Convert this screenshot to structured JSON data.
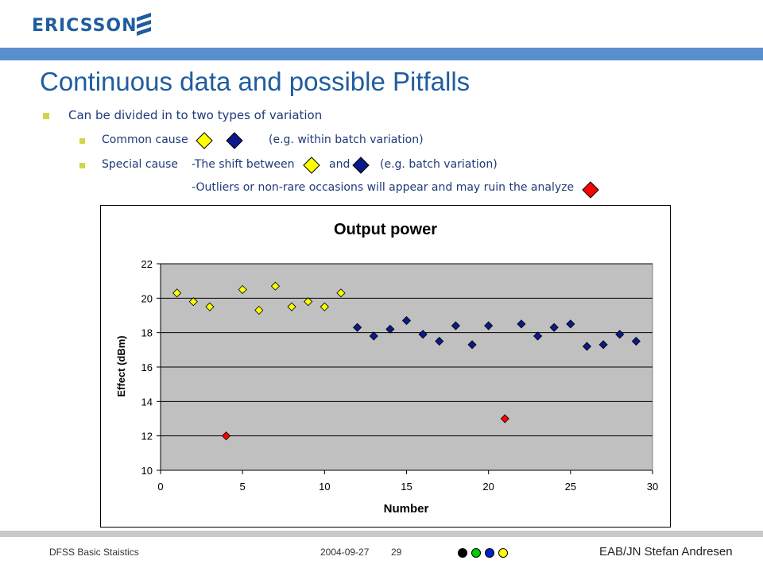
{
  "header": {
    "logo_text": "ERICSSON",
    "logo_icon": "ericsson-stripes-icon",
    "bar_color": "#5a8fcf"
  },
  "slide": {
    "title": "Continuous data and possible Pitfalls",
    "bullet": "Can be divided in to two types of variation",
    "common": {
      "label": "Common cause",
      "note": "(e.g. within batch variation)"
    },
    "special": {
      "label": "Special cause",
      "shift_text": "-The shift between",
      "and_text": "and",
      "note": "(e.g. batch variation)",
      "outlier_text": "-Outliers or non-rare occasions will appear and may ruin the analyze"
    },
    "marker_colors": {
      "yellow": "#ffff00",
      "navy": "#0a1a8a",
      "red": "#ff0000"
    }
  },
  "chart_data": {
    "type": "scatter",
    "title": "Output power",
    "xlabel": "Number",
    "ylabel": "Effect (dBm)",
    "xlim": [
      0,
      30
    ],
    "ylim": [
      10,
      22
    ],
    "x_ticks": [
      0,
      5,
      10,
      15,
      20,
      25,
      30
    ],
    "y_ticks": [
      10,
      12,
      14,
      16,
      18,
      20,
      22
    ],
    "grid": "horizontal",
    "plot_background": "#c0c0c0",
    "series": [
      {
        "color": "#ffff00",
        "x": [
          1,
          2,
          3,
          5,
          6,
          7,
          8,
          9,
          10,
          11
        ],
        "y": [
          20.3,
          19.8,
          19.5,
          20.5,
          19.3,
          20.7,
          19.5,
          19.8,
          19.5,
          20.3
        ]
      },
      {
        "color": "#0a1a8a",
        "x": [
          12,
          13,
          14,
          15,
          16,
          17,
          18,
          19,
          20,
          22,
          23,
          24,
          25,
          26,
          27,
          28,
          29
        ],
        "y": [
          18.3,
          17.8,
          18.2,
          18.7,
          17.9,
          17.5,
          18.4,
          17.3,
          18.4,
          18.5,
          17.8,
          18.3,
          18.5,
          17.2,
          17.3,
          17.9,
          17.5
        ]
      },
      {
        "color": "#ff0000",
        "x": [
          4,
          21
        ],
        "y": [
          12.0,
          13.0
        ]
      }
    ]
  },
  "footer": {
    "course": "DFSS Basic Staistics",
    "date": "2004-09-27",
    "page": "29",
    "author": "EAB/JN Stefan Andresen",
    "dot_colors": [
      "#000000",
      "#00cc00",
      "#0022cc",
      "#ffff00"
    ]
  }
}
